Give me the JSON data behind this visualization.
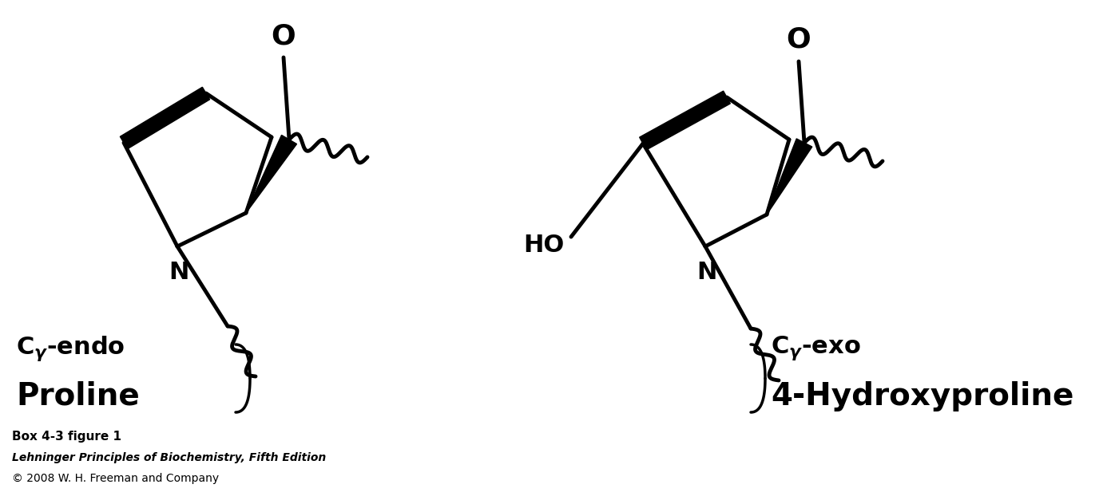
{
  "bg_color": "#ffffff",
  "line_color": "#000000",
  "line_width": 3.0,
  "fig_width": 14.01,
  "fig_height": 6.27,
  "caption_line1": "Box 4-3 figure 1",
  "caption_line2": "Lehninger Principles of Biochemistry, Fifth Edition",
  "caption_line3": "© 2008 W. H. Freeman and Company"
}
